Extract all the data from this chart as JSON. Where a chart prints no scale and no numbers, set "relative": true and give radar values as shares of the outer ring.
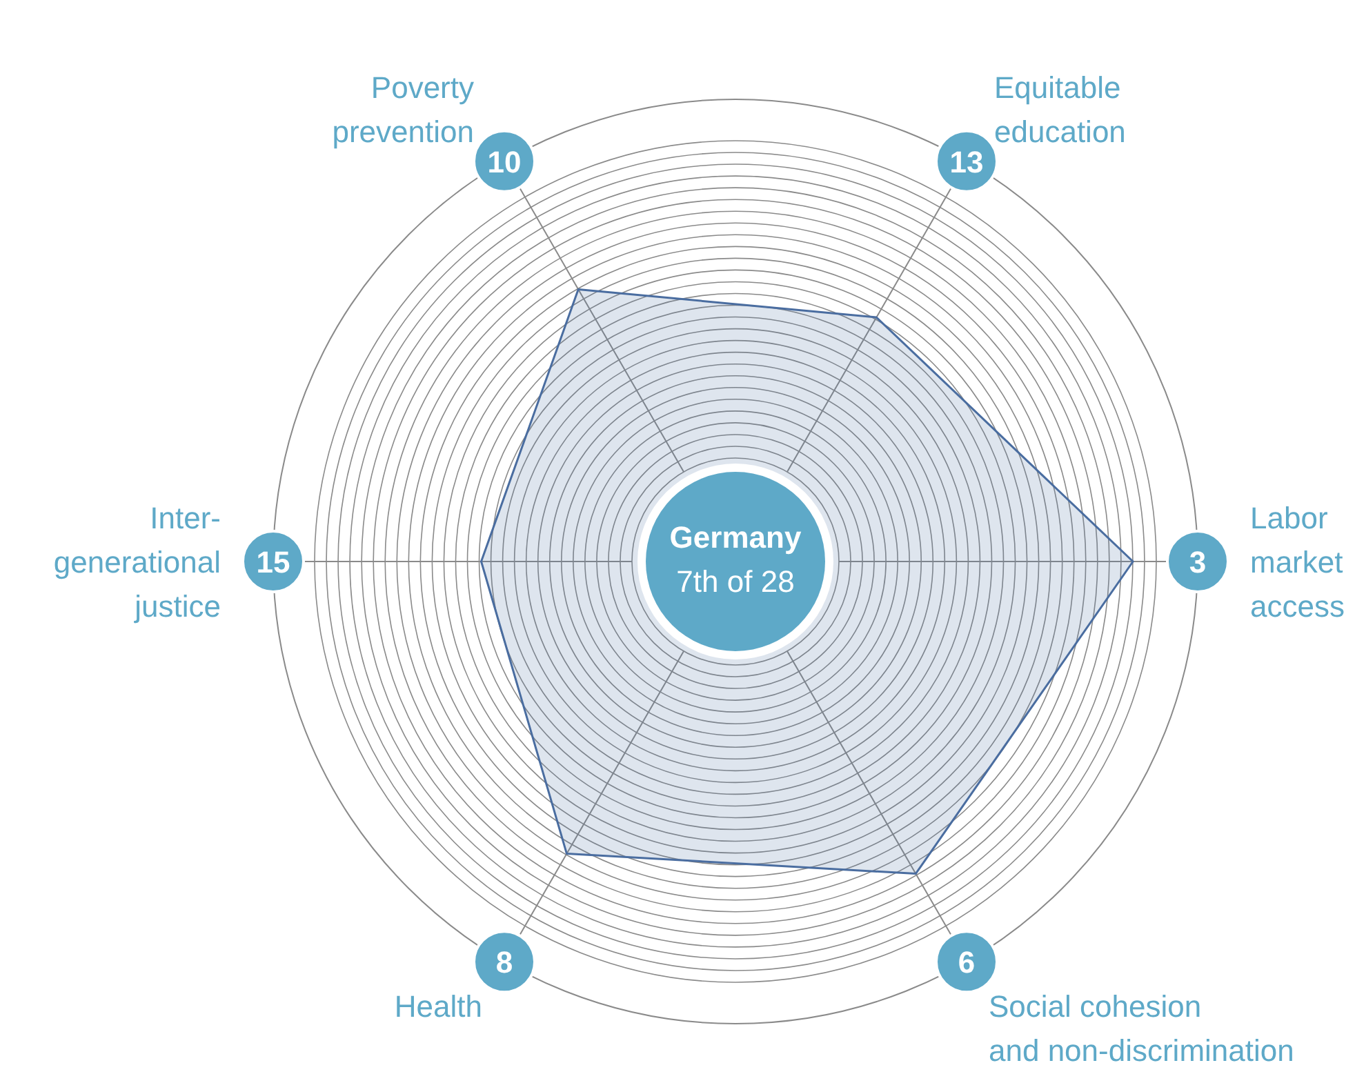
{
  "chart_data": {
    "type": "radar",
    "categories": [
      "Poverty\nprevention",
      "Equitable\neducation",
      "Labor\nmarket\naccess",
      "Social cohesion\nand non-discrimination",
      "Health",
      "Inter-\ngenerational\njustice"
    ],
    "series": [
      {
        "color": "#4a6da0",
        "values": [
          0.68,
          0.61,
          0.86,
          0.78,
          0.73,
          0.55
        ]
      }
    ],
    "relative": true,
    "grid": true,
    "annotations": [
      "Germany",
      "7th of 28",
      "10",
      "13",
      "3",
      "6",
      "8",
      "15"
    ]
  }
}
